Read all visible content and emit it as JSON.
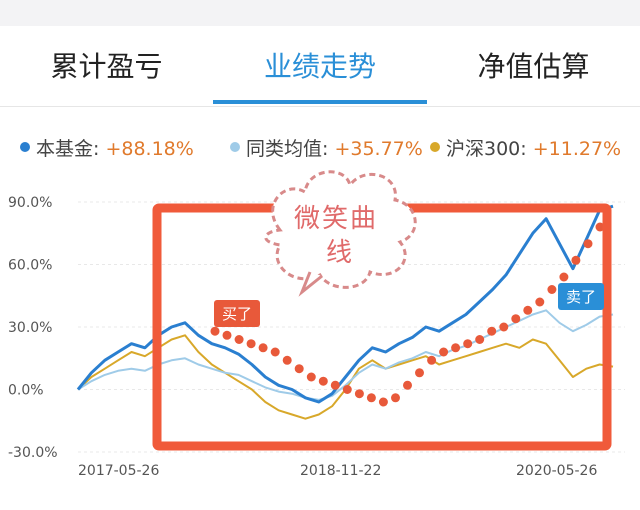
{
  "tabs": [
    {
      "label": "累计盈亏"
    },
    {
      "label": "业绩走势"
    },
    {
      "label": "净值估算"
    }
  ],
  "legend": [
    {
      "name": "本基金:",
      "value": "+88.18%",
      "color": "#2a7fd0"
    },
    {
      "name": "同类均值:",
      "value": "+35.77%",
      "color": "#9fcbe8"
    },
    {
      "name": "沪深300:",
      "value": "+11.27%",
      "color": "#d8a82a"
    }
  ],
  "annotations": {
    "cloud_line1": "微笑曲",
    "cloud_line2": "线",
    "buy_tag": "买了",
    "sell_tag": "卖了",
    "frame_color": "#f05a3a",
    "tag_buy_color": "#e8593a",
    "tag_sell_color": "#2a8fd7"
  },
  "chart_data": {
    "type": "line",
    "y_tick_labels": [
      "90.0%",
      "60.0%",
      "30.0%",
      "0.0%",
      "-30.0%"
    ],
    "y_ticks": [
      90,
      60,
      30,
      0,
      -30
    ],
    "x_tick_labels": [
      "2017-05-26",
      "2018-11-22",
      "2020-05-26"
    ],
    "ylim": [
      -30,
      90
    ],
    "grid": true,
    "series": [
      {
        "name": "本基金",
        "color": "#2a7fd0",
        "values": [
          0,
          8,
          14,
          18,
          22,
          20,
          26,
          30,
          32,
          26,
          22,
          20,
          17,
          12,
          6,
          2,
          0,
          -4,
          -6,
          -2,
          6,
          14,
          20,
          18,
          22,
          25,
          30,
          28,
          32,
          36,
          42,
          48,
          55,
          65,
          75,
          82,
          70,
          58,
          72,
          86,
          88
        ]
      },
      {
        "name": "同类均值",
        "color": "#9fcbe8",
        "values": [
          0,
          4,
          7,
          9,
          10,
          9,
          12,
          14,
          15,
          12,
          10,
          8,
          7,
          4,
          1,
          -1,
          -2,
          -4,
          -5,
          -3,
          2,
          8,
          12,
          10,
          13,
          15,
          18,
          16,
          19,
          21,
          24,
          27,
          30,
          33,
          36,
          38,
          32,
          28,
          31,
          35,
          36
        ]
      },
      {
        "name": "沪深300",
        "color": "#d8a82a",
        "values": [
          0,
          6,
          10,
          14,
          18,
          16,
          20,
          24,
          26,
          18,
          12,
          8,
          4,
          0,
          -6,
          -10,
          -12,
          -14,
          -12,
          -8,
          0,
          10,
          14,
          10,
          12,
          14,
          16,
          12,
          14,
          16,
          18,
          20,
          22,
          20,
          24,
          22,
          14,
          6,
          10,
          12,
          11
        ]
      }
    ],
    "markers": {
      "name": "买卖点",
      "color": "#e8593a",
      "values": [
        28,
        26,
        24,
        22,
        20,
        18,
        14,
        10,
        6,
        4,
        2,
        0,
        -2,
        -4,
        -6,
        -4,
        2,
        8,
        14,
        18,
        20,
        22,
        24,
        28,
        30,
        34,
        38,
        42,
        48,
        54,
        62,
        70,
        78
      ]
    }
  }
}
